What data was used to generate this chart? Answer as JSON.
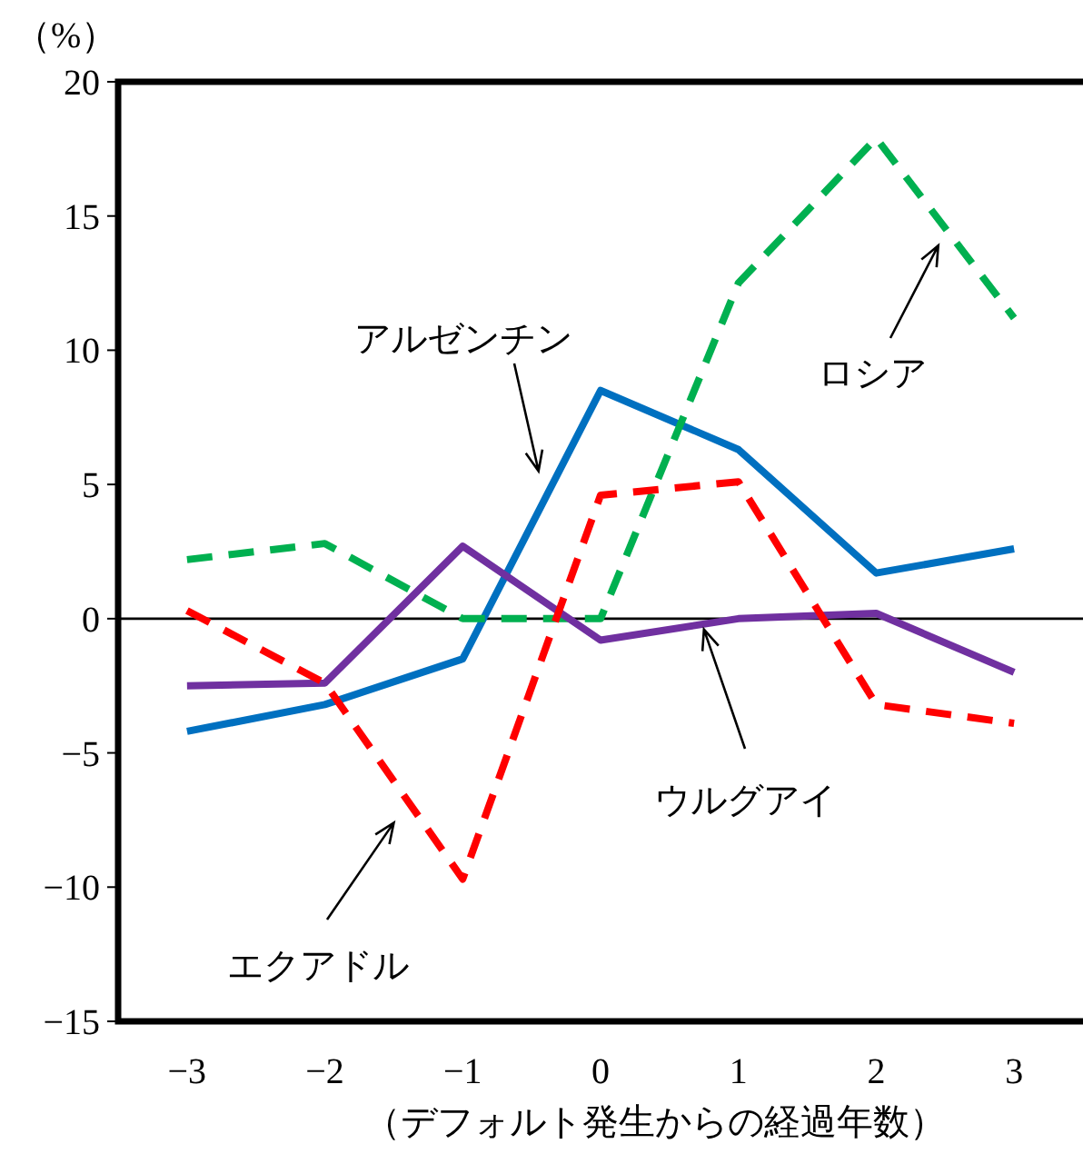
{
  "chart_data": {
    "type": "line",
    "ylabel": "（%）",
    "xlabel": "（デフォルト発生からの経過年数）",
    "x": [
      -3,
      -2,
      -1,
      0,
      1,
      2,
      3
    ],
    "xlim": [
      -3.5,
      3.5
    ],
    "xticks": [
      -3,
      -2,
      -1,
      0,
      1,
      2,
      3
    ],
    "ylim": [
      -15,
      20
    ],
    "yticks": [
      -15,
      -10,
      -5,
      0,
      5,
      10,
      15,
      20
    ],
    "grid": false,
    "ref_lines": [
      {
        "axis": "y",
        "value": 0,
        "color": "#000000"
      }
    ],
    "series": [
      {
        "name": "アルゼンチン",
        "color": "#0070c0",
        "line_style": "solid",
        "values": [
          -4.2,
          -3.2,
          -1.5,
          8.5,
          6.3,
          1.7,
          2.6
        ]
      },
      {
        "name": "ロシア",
        "color": "#00b050",
        "line_style": "dashed",
        "values": [
          2.2,
          2.8,
          0,
          0,
          12.5,
          17.9,
          11.2
        ]
      },
      {
        "name": "ウルグアイ",
        "color": "#7030a0",
        "line_style": "solid",
        "values": [
          -2.5,
          -2.4,
          2.7,
          -0.8,
          0,
          0.2,
          -2.0
        ]
      },
      {
        "name": "エクアドル",
        "color": "#ff0000",
        "line_style": "dashed",
        "values": [
          0.3,
          -2.4,
          -9.7,
          4.6,
          5.1,
          -3.2,
          -3.9
        ]
      }
    ]
  }
}
